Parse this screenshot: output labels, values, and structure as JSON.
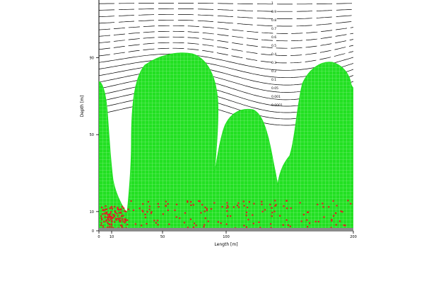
{
  "chart_data": {
    "type": "scatter",
    "title": "",
    "xlabel": "Length [m]",
    "ylabel": "Depth [m]",
    "xlim": [
      0,
      200
    ],
    "ylim": [
      0,
      120
    ],
    "x_ticks": [
      {
        "value": 0,
        "label": "0"
      },
      {
        "value": 10,
        "label": "10"
      },
      {
        "value": 50,
        "label": "50"
      },
      {
        "value": 100,
        "label": "100"
      },
      {
        "value": 200,
        "label": "200"
      }
    ],
    "y_ticks": [
      {
        "value": 0,
        "label": "0"
      },
      {
        "value": 10,
        "label": "10"
      },
      {
        "value": 50,
        "label": "50"
      },
      {
        "value": 90,
        "label": "90"
      }
    ],
    "contour_labels": [
      "1",
      "0.9",
      "0.8",
      "0.7",
      "0.6",
      "0.5",
      "0.4",
      "0.3",
      "0.2",
      "0.1",
      "0.05",
      "0.001",
      "0.0001"
    ],
    "colors": {
      "green_cells": "#22e022",
      "red_cells": "#dd2222",
      "ground": "#8a8a8a",
      "contour": "#000000"
    }
  }
}
